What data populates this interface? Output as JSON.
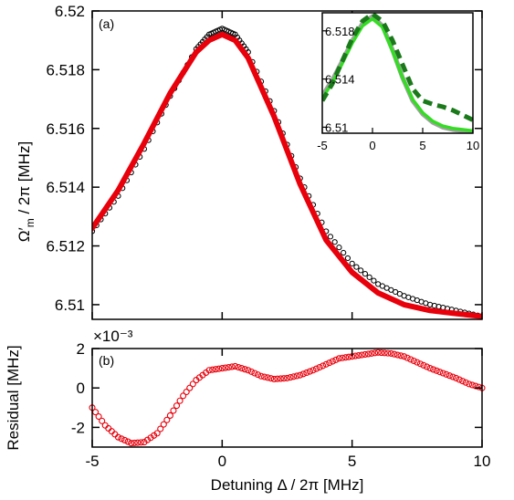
{
  "chart_data": [
    {
      "panel": "a",
      "type": "scatter",
      "tag": "(a)",
      "ylabel_main": "Ω′",
      "ylabel_sub": "m",
      "ylabel_rest": " / 2π [MHz]",
      "xlim": [
        -5,
        10
      ],
      "ylim": [
        6.5095,
        6.52
      ],
      "yticks": [
        "6.52",
        "6.518",
        "6.516",
        "6.514",
        "6.512",
        "6.51"
      ],
      "ytick_values": [
        6.52,
        6.518,
        6.516,
        6.514,
        6.512,
        6.51
      ],
      "xtick_values": [
        -5,
        0,
        5,
        10
      ],
      "series": [
        {
          "kind": "data-points",
          "marker": "open-circle",
          "color": "#000000",
          "x": [
            -5,
            -4,
            -3,
            -2,
            -1,
            -0.5,
            0,
            0.5,
            1,
            2,
            3,
            4,
            5,
            6,
            7,
            8,
            9,
            10
          ],
          "y": [
            6.5125,
            6.5137,
            6.5153,
            6.5171,
            6.5187,
            6.5192,
            6.5194,
            6.5192,
            6.5186,
            6.5166,
            6.5143,
            6.5125,
            6.5114,
            6.5107,
            6.5103,
            6.51,
            6.5098,
            6.5096
          ]
        },
        {
          "kind": "fit",
          "color": "#e8000b",
          "x": [
            -5,
            -4,
            -3,
            -2,
            -1,
            -0.5,
            0,
            0.5,
            1,
            2,
            3,
            4,
            5,
            6,
            7,
            8,
            9,
            10
          ],
          "y": [
            6.5126,
            6.5139,
            6.5155,
            6.5172,
            6.5186,
            6.519,
            6.5192,
            6.519,
            6.5184,
            6.5164,
            6.5141,
            6.5122,
            6.5111,
            6.5104,
            6.51,
            6.5098,
            6.5097,
            6.5096
          ]
        }
      ]
    },
    {
      "panel": "inset",
      "type": "line",
      "xlim": [
        -5,
        10
      ],
      "ylim": [
        6.5095,
        6.5195
      ],
      "yticks": [
        "6.518",
        "6.514",
        "6.51"
      ],
      "ytick_values": [
        6.518,
        6.514,
        6.51
      ],
      "xticks": [
        "-5",
        "0",
        "5",
        "10"
      ],
      "xtick_values": [
        -5,
        0,
        5,
        10
      ],
      "series": [
        {
          "kind": "gray-curve",
          "color": "#a0a0a0",
          "x": [
            -5,
            -4,
            -3,
            -2,
            -1,
            0,
            1,
            2,
            3,
            4,
            5,
            6,
            7,
            8,
            9,
            10
          ],
          "y": [
            6.5126,
            6.5139,
            6.5155,
            6.5172,
            6.5186,
            6.5192,
            6.5184,
            6.5164,
            6.5141,
            6.5122,
            6.5111,
            6.5104,
            6.51,
            6.5098,
            6.5097,
            6.5096
          ]
        },
        {
          "kind": "light-green-curve",
          "color": "#33dd22",
          "x": [
            -5,
            -4,
            -3,
            -2,
            -1,
            0,
            1,
            2,
            3,
            4,
            5,
            6,
            7,
            8,
            9,
            10
          ],
          "y": [
            6.5124,
            6.5137,
            6.5153,
            6.517,
            6.5184,
            6.519,
            6.5183,
            6.5163,
            6.5141,
            6.5123,
            6.5112,
            6.5105,
            6.5101,
            6.5099,
            6.5098,
            6.5097
          ]
        },
        {
          "kind": "dark-green-dashed",
          "color": "#1a7a1a",
          "x": [
            -5,
            -4,
            -3,
            -2,
            -1,
            0,
            1,
            2,
            3,
            4,
            5,
            6,
            7,
            8,
            9,
            10
          ],
          "y": [
            6.5122,
            6.5136,
            6.5155,
            6.5174,
            6.5188,
            6.5194,
            6.5188,
            6.5172,
            6.5152,
            6.5132,
            6.5122,
            6.5119,
            6.5117,
            6.5114,
            6.511,
            6.5106
          ]
        }
      ]
    },
    {
      "panel": "b",
      "type": "scatter",
      "tag": "(b)",
      "ylabel": "Residual [MHz]",
      "xlabel": "Detuning Δ / 2π [MHz]",
      "exponent_label": "×10⁻³",
      "xlim": [
        -5,
        10
      ],
      "ylim": [
        -3,
        2
      ],
      "yticks": [
        "2",
        "0",
        "-2"
      ],
      "ytick_values": [
        2,
        0,
        -2
      ],
      "xticks": [
        "-5",
        "0",
        "5",
        "10"
      ],
      "xtick_values": [
        -5,
        0,
        5,
        10
      ],
      "series": [
        {
          "kind": "residual-points",
          "marker": "open-circle",
          "color": "#e8000b",
          "x": [
            -5,
            -4.5,
            -4,
            -3.5,
            -3,
            -2.5,
            -2,
            -1.5,
            -1,
            -0.5,
            0,
            0.5,
            1,
            1.5,
            2,
            2.5,
            3,
            3.5,
            4,
            4.5,
            5,
            5.5,
            6,
            6.5,
            7,
            7.5,
            8,
            8.5,
            9,
            9.5,
            10
          ],
          "y": [
            -1.0,
            -1.9,
            -2.5,
            -2.8,
            -2.75,
            -2.3,
            -1.4,
            -0.4,
            0.4,
            0.9,
            1.0,
            1.1,
            0.9,
            0.6,
            0.45,
            0.5,
            0.65,
            0.9,
            1.2,
            1.5,
            1.6,
            1.7,
            1.8,
            1.75,
            1.6,
            1.3,
            1.0,
            0.75,
            0.5,
            0.2,
            0.0
          ]
        }
      ]
    }
  ]
}
